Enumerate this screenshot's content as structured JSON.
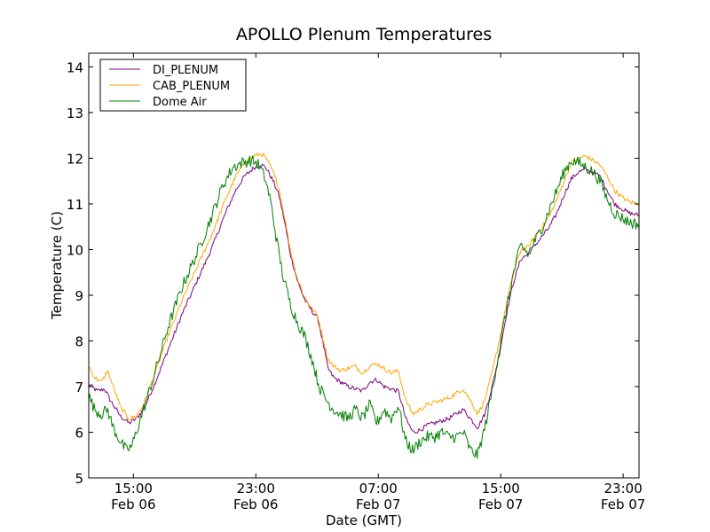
{
  "chart_data": {
    "type": "line",
    "title": "APOLLO Plenum Temperatures",
    "xlabel": "Date (GMT)",
    "ylabel": "Temperature (C)",
    "xlim": [
      0,
      38.2
    ],
    "ylim": [
      5,
      14.3
    ],
    "grid": false,
    "legend_position": "top-left",
    "yticks": [
      5,
      6,
      7,
      8,
      9,
      10,
      11,
      12,
      13,
      14
    ],
    "xticks": [
      {
        "x": 3.1,
        "time": "15:00",
        "date": "Feb 06"
      },
      {
        "x": 11.6,
        "time": "23:00",
        "date": "Feb 06"
      },
      {
        "x": 20.1,
        "time": "07:00",
        "date": "Feb 07"
      },
      {
        "x": 28.6,
        "time": "15:00",
        "date": "Feb 07"
      },
      {
        "x": 37.1,
        "time": "23:00",
        "date": "Feb 07"
      }
    ],
    "series": [
      {
        "name": "DI_PLENUM",
        "color": "#800080",
        "noise": 0.05,
        "points": [
          [
            0,
            7.05
          ],
          [
            0.6,
            6.9
          ],
          [
            1.1,
            6.95
          ],
          [
            1.5,
            6.7
          ],
          [
            2.2,
            6.35
          ],
          [
            2.8,
            6.2
          ],
          [
            3.3,
            6.3
          ],
          [
            3.8,
            6.5
          ],
          [
            4.5,
            7.0
          ],
          [
            5.5,
            7.8
          ],
          [
            6.5,
            8.6
          ],
          [
            7.5,
            9.3
          ],
          [
            8.5,
            10.0
          ],
          [
            9.5,
            10.8
          ],
          [
            10.2,
            11.3
          ],
          [
            10.8,
            11.6
          ],
          [
            11.5,
            11.8
          ],
          [
            12.0,
            11.85
          ],
          [
            12.3,
            11.8
          ],
          [
            12.8,
            11.5
          ],
          [
            13.2,
            11.2
          ],
          [
            13.6,
            10.6
          ],
          [
            14.0,
            9.9
          ],
          [
            14.5,
            9.3
          ],
          [
            15.0,
            8.9
          ],
          [
            15.5,
            8.65
          ],
          [
            15.9,
            8.5
          ],
          [
            16.3,
            7.9
          ],
          [
            16.6,
            7.4
          ],
          [
            17.0,
            7.2
          ],
          [
            17.5,
            7.1
          ],
          [
            18.0,
            7.0
          ],
          [
            18.5,
            6.95
          ],
          [
            19.0,
            6.9
          ],
          [
            19.5,
            7.1
          ],
          [
            20.0,
            7.15
          ],
          [
            20.5,
            7.0
          ],
          [
            21.0,
            6.95
          ],
          [
            21.5,
            6.9
          ],
          [
            22.0,
            6.3
          ],
          [
            22.5,
            6.0
          ],
          [
            23.0,
            6.05
          ],
          [
            23.5,
            6.15
          ],
          [
            24.0,
            6.2
          ],
          [
            24.5,
            6.25
          ],
          [
            25.0,
            6.3
          ],
          [
            25.5,
            6.4
          ],
          [
            26.0,
            6.5
          ],
          [
            26.5,
            6.3
          ],
          [
            27.0,
            6.1
          ],
          [
            27.5,
            6.4
          ],
          [
            28.0,
            7.0
          ],
          [
            28.5,
            7.7
          ],
          [
            29.0,
            8.6
          ],
          [
            29.5,
            9.3
          ],
          [
            30.0,
            9.8
          ],
          [
            30.5,
            9.9
          ],
          [
            31.0,
            10.1
          ],
          [
            31.5,
            10.3
          ],
          [
            32.0,
            10.5
          ],
          [
            32.5,
            10.8
          ],
          [
            33.0,
            11.2
          ],
          [
            33.5,
            11.55
          ],
          [
            34.0,
            11.7
          ],
          [
            34.5,
            11.75
          ],
          [
            35.0,
            11.7
          ],
          [
            35.5,
            11.6
          ],
          [
            36.0,
            11.3
          ],
          [
            36.5,
            11.0
          ],
          [
            37.0,
            10.9
          ],
          [
            37.5,
            10.8
          ],
          [
            38.2,
            10.75
          ]
        ]
      },
      {
        "name": "CAB_PLENUM",
        "color": "#ffa500",
        "noise": 0.05,
        "points": [
          [
            0,
            7.45
          ],
          [
            0.4,
            7.2
          ],
          [
            0.9,
            7.1
          ],
          [
            1.3,
            7.35
          ],
          [
            1.7,
            7.0
          ],
          [
            2.2,
            6.55
          ],
          [
            2.8,
            6.3
          ],
          [
            3.3,
            6.35
          ],
          [
            3.8,
            6.6
          ],
          [
            4.5,
            7.2
          ],
          [
            5.5,
            8.1
          ],
          [
            6.5,
            8.9
          ],
          [
            7.5,
            9.6
          ],
          [
            8.5,
            10.3
          ],
          [
            9.5,
            11.1
          ],
          [
            10.2,
            11.6
          ],
          [
            10.8,
            11.9
          ],
          [
            11.5,
            12.05
          ],
          [
            12.0,
            12.1
          ],
          [
            12.3,
            12.0
          ],
          [
            12.8,
            11.7
          ],
          [
            13.2,
            11.35
          ],
          [
            13.6,
            10.7
          ],
          [
            14.0,
            10.0
          ],
          [
            14.5,
            9.35
          ],
          [
            15.0,
            8.95
          ],
          [
            15.5,
            8.7
          ],
          [
            15.9,
            8.55
          ],
          [
            16.3,
            8.0
          ],
          [
            16.6,
            7.6
          ],
          [
            17.0,
            7.45
          ],
          [
            17.5,
            7.35
          ],
          [
            18.0,
            7.4
          ],
          [
            18.5,
            7.45
          ],
          [
            19.0,
            7.3
          ],
          [
            19.5,
            7.45
          ],
          [
            20.0,
            7.5
          ],
          [
            20.5,
            7.4
          ],
          [
            21.0,
            7.3
          ],
          [
            21.5,
            7.35
          ],
          [
            22.0,
            6.7
          ],
          [
            22.5,
            6.4
          ],
          [
            23.0,
            6.5
          ],
          [
            23.5,
            6.6
          ],
          [
            24.0,
            6.65
          ],
          [
            24.5,
            6.7
          ],
          [
            25.0,
            6.75
          ],
          [
            25.5,
            6.85
          ],
          [
            26.0,
            6.95
          ],
          [
            26.5,
            6.7
          ],
          [
            27.0,
            6.4
          ],
          [
            27.5,
            6.7
          ],
          [
            28.0,
            7.3
          ],
          [
            28.5,
            8.0
          ],
          [
            29.0,
            8.8
          ],
          [
            29.5,
            9.5
          ],
          [
            30.0,
            10.0
          ],
          [
            30.5,
            10.05
          ],
          [
            31.0,
            10.3
          ],
          [
            31.5,
            10.5
          ],
          [
            32.0,
            10.75
          ],
          [
            32.5,
            11.1
          ],
          [
            33.0,
            11.5
          ],
          [
            33.5,
            11.9
          ],
          [
            34.0,
            12.0
          ],
          [
            34.5,
            12.05
          ],
          [
            35.0,
            11.95
          ],
          [
            35.5,
            11.85
          ],
          [
            36.0,
            11.6
          ],
          [
            36.5,
            11.3
          ],
          [
            37.0,
            11.15
          ],
          [
            37.5,
            11.05
          ],
          [
            38.2,
            11.0
          ]
        ]
      },
      {
        "name": "Dome Air",
        "color": "#008000",
        "noise": 0.13,
        "points": [
          [
            0,
            6.8
          ],
          [
            0.4,
            6.5
          ],
          [
            0.9,
            6.4
          ],
          [
            1.3,
            6.5
          ],
          [
            1.7,
            6.1
          ],
          [
            2.2,
            5.8
          ],
          [
            2.6,
            5.6
          ],
          [
            3.0,
            5.7
          ],
          [
            3.4,
            6.1
          ],
          [
            3.8,
            6.5
          ],
          [
            4.5,
            7.2
          ],
          [
            5.5,
            8.3
          ],
          [
            6.5,
            9.2
          ],
          [
            7.5,
            9.9
          ],
          [
            8.5,
            10.7
          ],
          [
            9.3,
            11.4
          ],
          [
            10.0,
            11.8
          ],
          [
            10.6,
            11.9
          ],
          [
            11.2,
            11.95
          ],
          [
            11.7,
            11.9
          ],
          [
            12.2,
            11.6
          ],
          [
            12.6,
            11.1
          ],
          [
            13.0,
            10.3
          ],
          [
            13.5,
            9.4
          ],
          [
            14.0,
            8.8
          ],
          [
            14.5,
            8.4
          ],
          [
            15.0,
            8.1
          ],
          [
            15.5,
            7.6
          ],
          [
            16.0,
            7.0
          ],
          [
            16.5,
            6.7
          ],
          [
            17.0,
            6.5
          ],
          [
            17.5,
            6.4
          ],
          [
            18.0,
            6.3
          ],
          [
            18.5,
            6.5
          ],
          [
            19.0,
            6.3
          ],
          [
            19.5,
            6.6
          ],
          [
            20.0,
            6.2
          ],
          [
            20.5,
            6.5
          ],
          [
            21.0,
            6.3
          ],
          [
            21.5,
            6.6
          ],
          [
            22.0,
            5.8
          ],
          [
            22.5,
            5.6
          ],
          [
            23.0,
            5.8
          ],
          [
            23.5,
            5.9
          ],
          [
            24.0,
            5.9
          ],
          [
            24.5,
            6.0
          ],
          [
            25.0,
            5.9
          ],
          [
            25.5,
            5.9
          ],
          [
            26.0,
            6.0
          ],
          [
            26.5,
            5.6
          ],
          [
            27.0,
            5.5
          ],
          [
            27.5,
            6.1
          ],
          [
            28.0,
            6.9
          ],
          [
            28.5,
            7.8
          ],
          [
            29.0,
            8.7
          ],
          [
            29.5,
            9.5
          ],
          [
            30.0,
            10.1
          ],
          [
            30.5,
            9.9
          ],
          [
            31.0,
            10.2
          ],
          [
            31.5,
            10.5
          ],
          [
            32.0,
            10.9
          ],
          [
            32.5,
            11.3
          ],
          [
            33.0,
            11.7
          ],
          [
            33.5,
            11.95
          ],
          [
            34.0,
            11.9
          ],
          [
            34.5,
            11.8
          ],
          [
            35.0,
            11.7
          ],
          [
            35.5,
            11.5
          ],
          [
            36.0,
            11.1
          ],
          [
            36.5,
            10.8
          ],
          [
            37.0,
            10.7
          ],
          [
            37.5,
            10.6
          ],
          [
            38.2,
            10.55
          ]
        ]
      }
    ]
  }
}
